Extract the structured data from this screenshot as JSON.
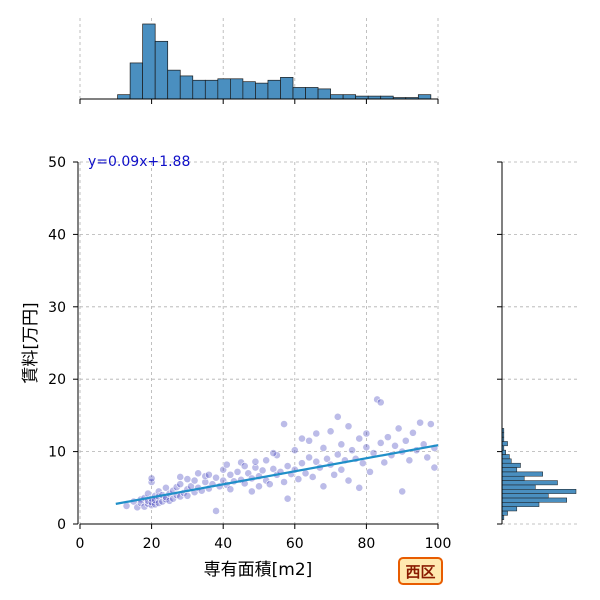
{
  "chart_data": {
    "type": "scatter",
    "xlabel": "専有面積[m2]",
    "ylabel": "賃料[万円]",
    "xlim": [
      0,
      100
    ],
    "ylim": [
      0,
      50
    ],
    "xticks": [
      0,
      20,
      40,
      60,
      80,
      100
    ],
    "yticks": [
      0,
      10,
      20,
      30,
      40,
      50
    ],
    "grid": true,
    "point_color": "#3030b8",
    "hist_color": "#4a8fc0",
    "regression": {
      "slope": 0.09,
      "intercept": 1.88,
      "x_range": [
        10,
        100
      ],
      "label": "y=0.09x+1.88",
      "color": "#1f8fc8"
    },
    "x_histogram": {
      "bin_width": 3.5,
      "bins_start": 10.5,
      "counts": [
        3,
        25,
        52,
        40,
        20,
        16,
        13,
        13,
        14,
        14,
        12,
        11,
        13,
        15,
        8,
        8,
        7,
        3,
        3,
        2,
        2,
        2,
        1,
        1,
        3
      ]
    },
    "y_histogram": {
      "bin_width": 0.6,
      "bins_start": 0.6,
      "counts": [
        1,
        3,
        8,
        20,
        35,
        25,
        40,
        18,
        30,
        12,
        22,
        8,
        10,
        5,
        4,
        2,
        1,
        3,
        1,
        1,
        1
      ]
    },
    "points": [
      [
        13,
        2.5
      ],
      [
        15,
        3.1
      ],
      [
        16,
        2.3
      ],
      [
        17,
        3.4
      ],
      [
        17,
        2.9
      ],
      [
        18,
        2.4
      ],
      [
        18,
        3.6
      ],
      [
        19,
        2.8
      ],
      [
        19,
        4.2
      ],
      [
        19,
        3.2
      ],
      [
        20,
        2.6
      ],
      [
        20,
        3.0
      ],
      [
        20,
        5.8
      ],
      [
        20,
        6.3
      ],
      [
        20,
        3.5
      ],
      [
        21,
        2.7
      ],
      [
        21,
        3.9
      ],
      [
        21,
        3.3
      ],
      [
        22,
        2.9
      ],
      [
        22,
        4.5
      ],
      [
        22,
        3.8
      ],
      [
        23,
        3.1
      ],
      [
        23,
        4.0
      ],
      [
        24,
        3.4
      ],
      [
        24,
        5.0
      ],
      [
        24,
        3.7
      ],
      [
        25,
        4.2
      ],
      [
        25,
        3.2
      ],
      [
        26,
        4.6
      ],
      [
        26,
        3.5
      ],
      [
        27,
        5.1
      ],
      [
        27,
        4.0
      ],
      [
        28,
        3.8
      ],
      [
        28,
        5.5
      ],
      [
        29,
        4.3
      ],
      [
        30,
        4.8
      ],
      [
        30,
        6.2
      ],
      [
        30,
        3.9
      ],
      [
        31,
        5.2
      ],
      [
        32,
        4.4
      ],
      [
        32,
        6.0
      ],
      [
        33,
        5.0
      ],
      [
        34,
        4.6
      ],
      [
        35,
        5.8
      ],
      [
        35,
        6.6
      ],
      [
        36,
        4.9
      ],
      [
        37,
        5.5
      ],
      [
        38,
        6.4
      ],
      [
        38,
        1.8
      ],
      [
        39,
        5.2
      ],
      [
        40,
        6.0
      ],
      [
        40,
        7.5
      ],
      [
        41,
        5.4
      ],
      [
        42,
        6.8
      ],
      [
        42,
        4.8
      ],
      [
        43,
        5.9
      ],
      [
        44,
        7.2
      ],
      [
        45,
        6.1
      ],
      [
        45,
        8.5
      ],
      [
        46,
        5.6
      ],
      [
        47,
        7.0
      ],
      [
        48,
        6.3
      ],
      [
        48,
        4.5
      ],
      [
        49,
        7.8
      ],
      [
        50,
        6.6
      ],
      [
        50,
        5.2
      ],
      [
        51,
        7.4
      ],
      [
        52,
        8.8
      ],
      [
        52,
        6.0
      ],
      [
        53,
        5.5
      ],
      [
        54,
        7.6
      ],
      [
        55,
        6.8
      ],
      [
        55,
        9.5
      ],
      [
        56,
        7.2
      ],
      [
        57,
        5.8
      ],
      [
        58,
        8.0
      ],
      [
        58,
        3.5
      ],
      [
        59,
        6.9
      ],
      [
        60,
        7.5
      ],
      [
        60,
        10.2
      ],
      [
        61,
        6.2
      ],
      [
        62,
        8.4
      ],
      [
        63,
        7.0
      ],
      [
        64,
        9.2
      ],
      [
        64,
        11.5
      ],
      [
        65,
        6.5
      ],
      [
        66,
        8.6
      ],
      [
        67,
        7.8
      ],
      [
        68,
        10.5
      ],
      [
        68,
        5.2
      ],
      [
        69,
        9.0
      ],
      [
        70,
        8.2
      ],
      [
        70,
        12.8
      ],
      [
        71,
        6.8
      ],
      [
        72,
        9.6
      ],
      [
        73,
        11.0
      ],
      [
        73,
        7.5
      ],
      [
        74,
        8.8
      ],
      [
        75,
        13.5
      ],
      [
        75,
        6.0
      ],
      [
        76,
        10.2
      ],
      [
        77,
        9.0
      ],
      [
        78,
        11.8
      ],
      [
        78,
        5.0
      ],
      [
        79,
        8.4
      ],
      [
        80,
        10.6
      ],
      [
        80,
        12.5
      ],
      [
        81,
        7.2
      ],
      [
        82,
        9.8
      ],
      [
        83,
        17.2
      ],
      [
        84,
        16.8
      ],
      [
        84,
        11.2
      ],
      [
        85,
        8.5
      ],
      [
        86,
        12.0
      ],
      [
        87,
        9.5
      ],
      [
        88,
        10.8
      ],
      [
        89,
        13.2
      ],
      [
        90,
        4.5
      ],
      [
        90,
        10.0
      ],
      [
        91,
        11.5
      ],
      [
        92,
        8.8
      ],
      [
        93,
        12.6
      ],
      [
        94,
        10.2
      ],
      [
        95,
        14.0
      ],
      [
        96,
        11.0
      ],
      [
        97,
        9.2
      ],
      [
        98,
        13.8
      ],
      [
        99,
        7.8
      ],
      [
        99,
        10.5
      ],
      [
        57,
        13.8
      ],
      [
        62,
        11.8
      ],
      [
        66,
        12.5
      ],
      [
        72,
        14.8
      ],
      [
        54,
        9.8
      ],
      [
        46,
        8.0
      ],
      [
        36,
        6.8
      ],
      [
        28,
        6.5
      ],
      [
        33,
        7.0
      ],
      [
        41,
        8.2
      ],
      [
        49,
        8.6
      ]
    ]
  },
  "badge": {
    "label": "西区",
    "fill": "#ffe9b0",
    "border": "#e85c00"
  }
}
